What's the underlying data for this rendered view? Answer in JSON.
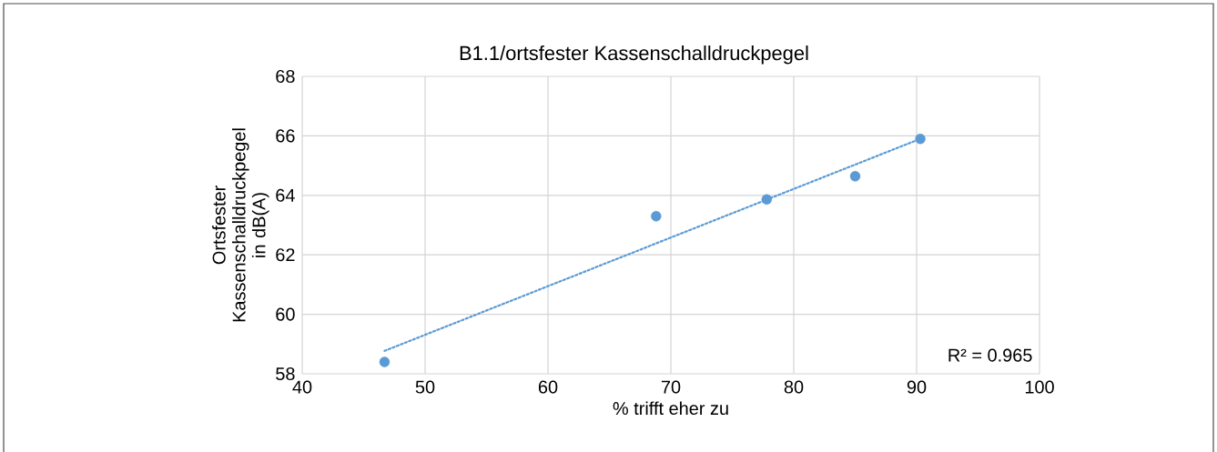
{
  "chart_data": {
    "type": "scatter",
    "title": "B1.1/ortsfester Kassenschalldruckpegel",
    "xlabel": "% trifft eher zu",
    "ylabel": "Ortsfester Kassenschalldruckpegel in dB(A)",
    "x": [
      46.7,
      68.8,
      77.8,
      85.0,
      90.3
    ],
    "series": [
      {
        "color": "#5b9bd5",
        "values": [
          58.4,
          63.3,
          63.86,
          64.64,
          65.9
        ],
        "marker": "circle"
      },
      {
        "type": "line",
        "x": [
          46.7,
          90.3
        ],
        "values": [
          58.77,
          65.9
        ],
        "color": "#5b9bd5",
        "line_style": "dotted",
        "marker": "none"
      }
    ],
    "xlim": [
      40,
      100
    ],
    "ylim": [
      58,
      68
    ],
    "xticks": [
      40,
      50,
      60,
      70,
      80,
      90,
      100
    ],
    "yticks": [
      58,
      60,
      62,
      64,
      66,
      68
    ],
    "grid": true,
    "annotations": [
      "R² = 0.965"
    ]
  }
}
